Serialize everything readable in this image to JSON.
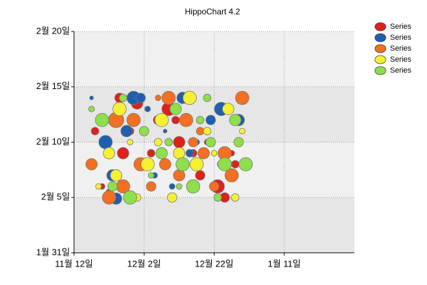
{
  "chart_data": {
    "type": "bubble",
    "title": "HippoChart 4.2",
    "xlim": [
      0,
      80
    ],
    "ylim": [
      0,
      20
    ],
    "xticks": [
      {
        "value": 0,
        "label": "11월 12일"
      },
      {
        "value": 20,
        "label": "12월 2일"
      },
      {
        "value": 40,
        "label": "12월 22일"
      },
      {
        "value": 60,
        "label": "1월 11일"
      }
    ],
    "yticks": [
      {
        "value": 0,
        "label": "1월 31일"
      },
      {
        "value": 5,
        "label": "2월 5일"
      },
      {
        "value": 10,
        "label": "2월 10일"
      },
      {
        "value": 15,
        "label": "2월 15일"
      },
      {
        "value": 20,
        "label": "2월 20일"
      }
    ],
    "grid": true,
    "legend": "top-right",
    "series": [
      {
        "name": "Series",
        "color": "#e0201b",
        "x": [
          6,
          8,
          13,
          14,
          16,
          20,
          22,
          24,
          27,
          29,
          30,
          34,
          36,
          38,
          41,
          43,
          45,
          46,
          10,
          18
        ],
        "values": [
          11,
          6,
          14,
          9,
          11,
          8,
          9,
          12,
          13,
          12,
          10,
          9,
          7,
          10,
          6,
          5,
          9,
          8,
          5.5,
          13.5
        ],
        "sizes": [
          4,
          3,
          5,
          6,
          4,
          3,
          4,
          5,
          7,
          4,
          6,
          4,
          5,
          3,
          7,
          5,
          3,
          4,
          3,
          6
        ]
      },
      {
        "name": "Series",
        "color": "#1f5fb0",
        "x": [
          5,
          9,
          11,
          15,
          17,
          21,
          23,
          26,
          28,
          31,
          33,
          35,
          39,
          42,
          44,
          47,
          12,
          19
        ],
        "values": [
          14,
          10,
          7,
          11,
          14,
          13,
          7,
          11,
          6,
          14,
          9,
          10,
          12,
          13,
          8,
          12,
          4.9,
          14
        ],
        "sizes": [
          2,
          7,
          6,
          6,
          7,
          3,
          3,
          2,
          3,
          6,
          4,
          3,
          5,
          7,
          4,
          6,
          6,
          5
        ]
      },
      {
        "name": "Series",
        "color": "#f36f21",
        "x": [
          5,
          8,
          12,
          14,
          17,
          19,
          22,
          24,
          27,
          30,
          32,
          36,
          37,
          40,
          43,
          45,
          48,
          10,
          26,
          34
        ],
        "values": [
          8,
          12,
          12,
          6,
          12,
          8,
          6,
          14,
          14,
          7,
          12,
          11,
          9,
          6,
          9,
          7,
          14,
          5,
          8,
          10
        ],
        "sizes": [
          6,
          5,
          8,
          7,
          7,
          7,
          5,
          3,
          7,
          6,
          7,
          4,
          6,
          5,
          7,
          7,
          7,
          7,
          6,
          5
        ]
      },
      {
        "name": "Series",
        "color": "#f5f032",
        "x": [
          7,
          10,
          13,
          16,
          18,
          21,
          25,
          28,
          30,
          33,
          35,
          38,
          40,
          44,
          46,
          12,
          24,
          42,
          48
        ],
        "values": [
          6,
          9,
          13,
          10,
          5,
          8,
          12,
          5,
          9,
          14,
          8,
          11,
          9,
          13,
          5,
          7,
          10,
          8,
          11
        ],
        "sizes": [
          3,
          6,
          7,
          3,
          4,
          7,
          7,
          5,
          6,
          7,
          7,
          4,
          3,
          6,
          4,
          6,
          4,
          4,
          3
        ]
      },
      {
        "name": "Series",
        "color": "#8ddf4c",
        "x": [
          5,
          8,
          11,
          14,
          20,
          22,
          25,
          27,
          29,
          31,
          34,
          36,
          39,
          41,
          43,
          46,
          49,
          16,
          30,
          38,
          47
        ],
        "values": [
          13,
          12,
          6,
          14,
          11,
          7,
          9,
          10,
          13,
          8,
          6,
          12,
          10,
          5,
          8,
          12,
          8,
          5,
          6,
          14,
          10
        ],
        "sizes": [
          3,
          7,
          5,
          4,
          5,
          3,
          6,
          4,
          6,
          7,
          7,
          4,
          5,
          4,
          7,
          6,
          7,
          7,
          3,
          4,
          5
        ]
      }
    ]
  }
}
